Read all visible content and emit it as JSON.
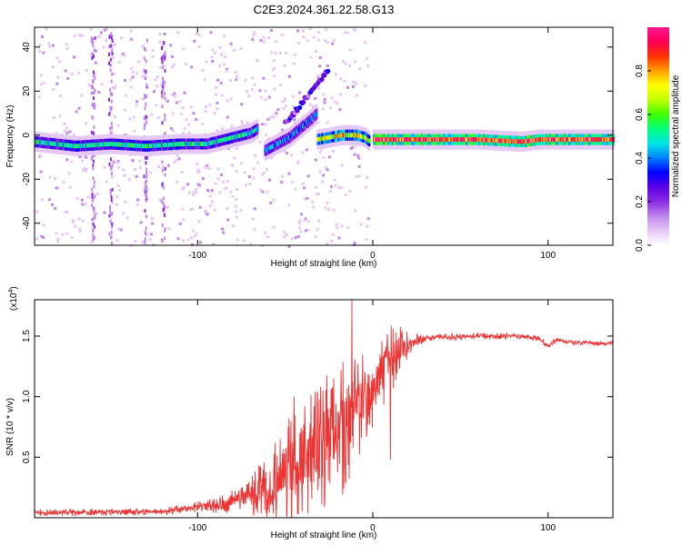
{
  "title": "C2E3.2024.361.22.58.G13",
  "colors": {
    "snr_line": "#ee3333",
    "colormap": [
      "#ffffff",
      "#e6c8f5",
      "#c088ee",
      "#8a2be2",
      "#5a00e6",
      "#0000ff",
      "#0080ff",
      "#00e5e5",
      "#00ff80",
      "#40ff00",
      "#c0ff00",
      "#ffff00",
      "#ffa000",
      "#ff3000",
      "#ff0055",
      "#ff1493"
    ]
  },
  "chart_data": [
    {
      "type": "heatmap",
      "xlabel": "Height of straight line (km)",
      "ylabel": "Frequency (Hz)",
      "xlim": [
        -193,
        137
      ],
      "ylim": [
        -50,
        49
      ],
      "xticks": [
        -100,
        0,
        100
      ],
      "yticks": [
        -40,
        -20,
        0,
        20,
        40
      ],
      "colorbar": {
        "label": "Normalized spectral amplitude",
        "range": [
          0,
          1
        ],
        "ticks": [
          0.0,
          0.2,
          0.4,
          0.6,
          0.8
        ]
      },
      "ridges": [
        {
          "x": [
            -193,
            -170,
            -150,
            -130,
            -110,
            -95,
            -85,
            -75,
            -70,
            -66
          ],
          "y": [
            -3,
            -5,
            -4,
            -5,
            -4,
            -4,
            -2,
            0,
            1,
            3
          ],
          "amplitude": 0.5
        },
        {
          "x": [
            -62,
            -55,
            -48,
            -42,
            -36,
            -32
          ],
          "y": [
            -7,
            -4,
            -1,
            3,
            7,
            10
          ],
          "amplitude": 0.4
        },
        {
          "x": [
            -32,
            -25,
            -18,
            -10,
            -5,
            -2
          ],
          "y": [
            -2,
            -1,
            0,
            0,
            -1,
            -3
          ],
          "amplitude": 0.7
        },
        {
          "x": [
            0,
            10,
            30,
            60,
            85,
            95,
            110,
            137
          ],
          "y": [
            -2,
            -2,
            -2,
            -2,
            -3,
            -2,
            -2,
            -2
          ],
          "amplitude": 0.92
        }
      ],
      "branches": [
        {
          "x": [
            -50,
            -43,
            -37,
            -30,
            -25
          ],
          "y": [
            5,
            12,
            18,
            25,
            30
          ],
          "amplitude": 0.25
        }
      ]
    },
    {
      "type": "line",
      "xlabel": "Height of straight line (km)",
      "ylabel": "SNR (10 * v/v)",
      "y_multiplier_label": "(x10",
      "y_multiplier_exponent": "4",
      "xlim": [
        -193,
        137
      ],
      "ylim": [
        0,
        1.8
      ],
      "xticks": [
        -100,
        0,
        100
      ],
      "yticks": [
        0.5,
        1.0,
        1.5
      ],
      "ytick_labels": [
        "0.5",
        "1.0",
        "1.5"
      ],
      "envelope": {
        "x": [
          -193,
          -120,
          -90,
          -70,
          -60,
          -50,
          -40,
          -30,
          -20,
          -15,
          -10,
          -5,
          0,
          5,
          10,
          15,
          20,
          25,
          30,
          40,
          60,
          80,
          95,
          100,
          105,
          115,
          125,
          137
        ],
        "y": [
          0.04,
          0.05,
          0.1,
          0.18,
          0.25,
          0.35,
          0.5,
          0.6,
          0.7,
          0.8,
          0.9,
          1.0,
          1.1,
          1.2,
          1.3,
          1.38,
          1.43,
          1.46,
          1.48,
          1.49,
          1.5,
          1.5,
          1.48,
          1.42,
          1.47,
          1.45,
          1.44,
          1.44
        ]
      },
      "noise_amplitude": {
        "x": [
          -193,
          -120,
          -90,
          -70,
          -60,
          -50,
          -40,
          -30,
          -20,
          -15,
          -10,
          0,
          10,
          20,
          25,
          30,
          137
        ],
        "y": [
          0.03,
          0.03,
          0.06,
          0.15,
          0.3,
          0.45,
          0.55,
          0.55,
          0.55,
          0.6,
          0.45,
          0.35,
          0.3,
          0.12,
          0.06,
          0.03,
          0.02
        ]
      },
      "spikes": [
        {
          "x": -12,
          "y": 1.8
        },
        {
          "x": -18,
          "y": 1.22
        },
        {
          "x": -45,
          "y": 1.0
        },
        {
          "x": 10,
          "y": 0.48
        }
      ]
    }
  ]
}
